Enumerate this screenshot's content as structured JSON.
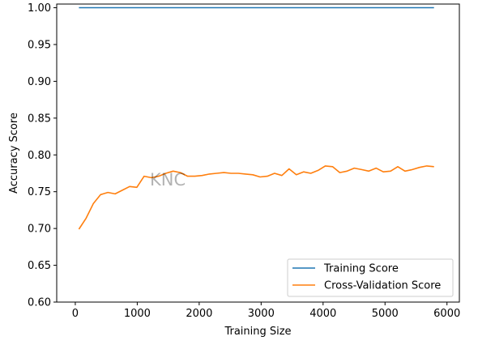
{
  "chart_data": {
    "type": "line",
    "title": "",
    "xlabel": "Training Size",
    "ylabel": "Accuracy Score",
    "xlim": [
      -300,
      6200
    ],
    "ylim": [
      0.6,
      1.005
    ],
    "xticks": [
      0,
      1000,
      2000,
      3000,
      4000,
      5000,
      6000
    ],
    "xtick_labels": [
      "0",
      "1000",
      "2000",
      "3000",
      "4000",
      "5000",
      "6000"
    ],
    "yticks": [
      0.6,
      0.65,
      0.7,
      0.75,
      0.8,
      0.85,
      0.9,
      0.95,
      1.0
    ],
    "ytick_labels": [
      "0.60",
      "0.65",
      "0.70",
      "0.75",
      "0.80",
      "0.85",
      "0.90",
      "0.95",
      "1.00"
    ],
    "grid": false,
    "legend_position": "lower-right",
    "annotation": "KNC",
    "x": [
      58,
      175,
      292,
      409,
      526,
      643,
      760,
      877,
      994,
      1111,
      1228,
      1345,
      1462,
      1579,
      1696,
      1813,
      1930,
      2047,
      2164,
      2281,
      2398,
      2515,
      2632,
      2749,
      2866,
      2983,
      3100,
      3217,
      3334,
      3451,
      3568,
      3685,
      3802,
      3919,
      4036,
      4153,
      4270,
      4387,
      4504,
      4621,
      4738,
      4855,
      4972,
      5089,
      5206,
      5323,
      5440,
      5557,
      5674,
      5791
    ],
    "series": [
      {
        "name": "Training Score",
        "color": "#1f77b4",
        "values": [
          1.0,
          1.0,
          1.0,
          1.0,
          1.0,
          1.0,
          1.0,
          1.0,
          1.0,
          1.0,
          1.0,
          1.0,
          1.0,
          1.0,
          1.0,
          1.0,
          1.0,
          1.0,
          1.0,
          1.0,
          1.0,
          1.0,
          1.0,
          1.0,
          1.0,
          1.0,
          1.0,
          1.0,
          1.0,
          1.0,
          1.0,
          1.0,
          1.0,
          1.0,
          1.0,
          1.0,
          1.0,
          1.0,
          1.0,
          1.0,
          1.0,
          1.0,
          1.0,
          1.0,
          1.0,
          1.0,
          1.0,
          1.0,
          1.0,
          1.0
        ]
      },
      {
        "name": "Cross-Validation Score",
        "color": "#ff7f0e",
        "values": [
          0.699,
          0.714,
          0.734,
          0.746,
          0.749,
          0.747,
          0.752,
          0.757,
          0.756,
          0.771,
          0.769,
          0.771,
          0.775,
          0.778,
          0.776,
          0.771,
          0.771,
          0.772,
          0.774,
          0.775,
          0.776,
          0.775,
          0.775,
          0.774,
          0.773,
          0.77,
          0.771,
          0.775,
          0.772,
          0.781,
          0.773,
          0.777,
          0.775,
          0.779,
          0.785,
          0.784,
          0.776,
          0.778,
          0.782,
          0.78,
          0.778,
          0.782,
          0.777,
          0.778,
          0.784,
          0.778,
          0.78,
          0.783,
          0.785,
          0.784
        ]
      }
    ]
  }
}
